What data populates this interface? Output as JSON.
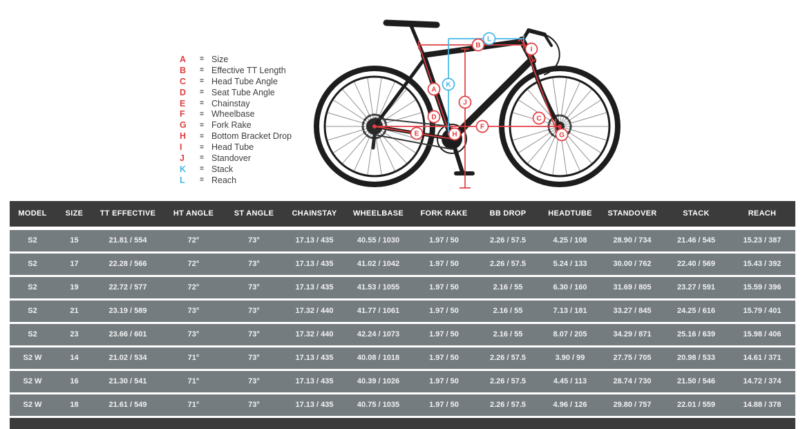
{
  "diagram": {
    "legend": [
      {
        "letter": "A",
        "label": "Size",
        "color": "#e23d41"
      },
      {
        "letter": "B",
        "label": "Effective TT Length",
        "color": "#e23d41"
      },
      {
        "letter": "C",
        "label": "Head Tube Angle",
        "color": "#e23d41"
      },
      {
        "letter": "D",
        "label": "Seat Tube Angle",
        "color": "#e23d41"
      },
      {
        "letter": "E",
        "label": "Chainstay",
        "color": "#e23d41"
      },
      {
        "letter": "F",
        "label": "Wheelbase",
        "color": "#e23d41"
      },
      {
        "letter": "G",
        "label": "Fork Rake",
        "color": "#e23d41"
      },
      {
        "letter": "H",
        "label": "Bottom Bracket Drop",
        "color": "#e23d41"
      },
      {
        "letter": "I",
        "label": "Head Tube",
        "color": "#e23d41"
      },
      {
        "letter": "J",
        "label": "Standover",
        "color": "#e23d41"
      },
      {
        "letter": "K",
        "label": "Stack",
        "color": "#45b7e6"
      },
      {
        "letter": "L",
        "label": "Reach",
        "color": "#45b7e6"
      }
    ],
    "colors": {
      "red": "#e23d41",
      "blue": "#45b7e6",
      "silhouette": "#1d1d1d"
    }
  },
  "table": {
    "columns": [
      "MODEL",
      "SIZE",
      "TT EFFECTIVE",
      "HT ANGLE",
      "ST ANGLE",
      "CHAINSTAY",
      "WHEELBASE",
      "FORK RAKE",
      "BB DROP",
      "HEADTUBE",
      "STANDOVER",
      "STACK",
      "REACH"
    ],
    "rows": [
      [
        "S2",
        "15",
        "21.81 / 554",
        "72°",
        "73°",
        "17.13 / 435",
        "40.55 / 1030",
        "1.97 / 50",
        "2.26 / 57.5",
        "4.25 / 108",
        "28.90 / 734",
        "21.46 / 545",
        "15.23 / 387"
      ],
      [
        "S2",
        "17",
        "22.28 / 566",
        "72°",
        "73°",
        "17.13 / 435",
        "41.02 / 1042",
        "1.97 / 50",
        "2.26 / 57.5",
        "5.24 / 133",
        "30.00 / 762",
        "22.40 / 569",
        "15.43 / 392"
      ],
      [
        "S2",
        "19",
        "22.72 / 577",
        "72°",
        "73°",
        "17.13 / 435",
        "41.53 / 1055",
        "1.97 / 50",
        "2.16 / 55",
        "6.30 / 160",
        "31.69 / 805",
        "23.27 / 591",
        "15.59 / 396"
      ],
      [
        "S2",
        "21",
        "23.19 / 589",
        "73°",
        "73°",
        "17.32 / 440",
        "41.77 / 1061",
        "1.97 / 50",
        "2.16 / 55",
        "7.13 / 181",
        "33.27 / 845",
        "24.25 / 616",
        "15.79 / 401"
      ],
      [
        "S2",
        "23",
        "23.66 / 601",
        "73°",
        "73°",
        "17.32 / 440",
        "42.24 / 1073",
        "1.97 / 50",
        "2.16 / 55",
        "8.07 / 205",
        "34.29 / 871",
        "25.16 / 639",
        "15.98 / 406"
      ],
      [
        "S2 W",
        "14",
        "21.02 / 534",
        "71°",
        "73°",
        "17.13 / 435",
        "40.08 / 1018",
        "1.97 / 50",
        "2.26 / 57.5",
        "3.90 / 99",
        "27.75 / 705",
        "20.98 / 533",
        "14.61 / 371"
      ],
      [
        "S2 W",
        "16",
        "21.30 / 541",
        "71°",
        "73°",
        "17.13 / 435",
        "40.39 / 1026",
        "1.97 / 50",
        "2.26 / 57.5",
        "4.45 / 113",
        "28.74 / 730",
        "21.50 / 546",
        "14.72 / 374"
      ],
      [
        "S2 W",
        "18",
        "21.61 / 549",
        "71°",
        "73°",
        "17.13 / 435",
        "40.75 / 1035",
        "1.97 / 50",
        "2.26 / 57.5",
        "4.96 / 126",
        "29.80 / 757",
        "22.01 / 559",
        "14.88 / 378"
      ]
    ],
    "colors": {
      "header_bg": "#3b3b3c",
      "row_bg": "#757c80",
      "text": "#ffffff"
    }
  }
}
